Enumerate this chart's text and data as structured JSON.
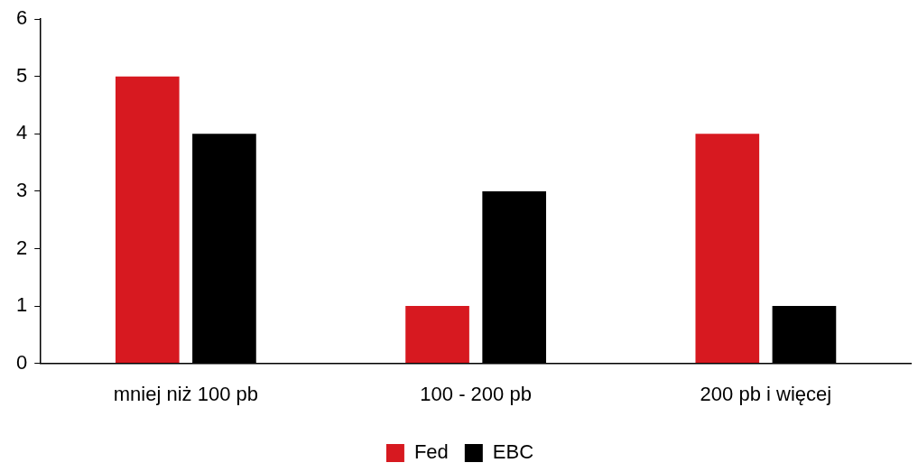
{
  "chart_data": {
    "type": "bar",
    "categories": [
      "mniej niż 100 pb",
      "100 - 200 pb",
      "200 pb i więcej"
    ],
    "series": [
      {
        "name": "Fed",
        "color": "#d71920",
        "values": [
          5,
          1,
          4
        ]
      },
      {
        "name": "EBC",
        "color": "#000000",
        "values": [
          4,
          3,
          1
        ]
      }
    ],
    "ylim": [
      0,
      6
    ],
    "yticks": [
      0,
      1,
      2,
      3,
      4,
      5,
      6
    ],
    "grid": false,
    "legend": "bottom"
  }
}
